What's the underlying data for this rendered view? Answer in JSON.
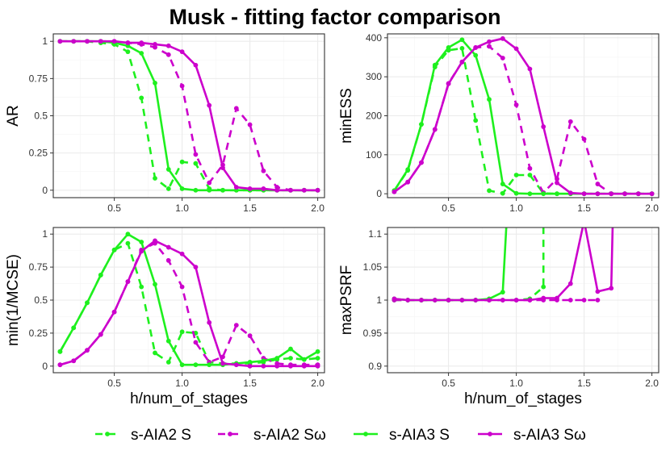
{
  "title": "Musk - fitting factor comparison",
  "colors": {
    "green": "#1ef01e",
    "magenta": "#cc00cc",
    "grid_major": "#ebebeb",
    "grid_minor": "#f5f5f5",
    "border": "#333333"
  },
  "legend": {
    "position": "bottom",
    "items": [
      {
        "label": "s-AIA2 S",
        "color": "#1ef01e",
        "dash": "dashed"
      },
      {
        "label": "s-AIA2 Sω",
        "color": "#cc00cc",
        "dash": "dashed"
      },
      {
        "label": "s-AIA3 S",
        "color": "#1ef01e",
        "dash": "solid"
      },
      {
        "label": "s-AIA3 Sω",
        "color": "#cc00cc",
        "dash": "solid"
      }
    ]
  },
  "chart_data": [
    {
      "type": "line",
      "ylabel": "AR",
      "xlabel": "",
      "xlim": [
        0.05,
        2.05
      ],
      "ylim": [
        -0.05,
        1.05
      ],
      "xticks": [
        {
          "v": 0.5,
          "l": "0.5"
        },
        {
          "v": 1.0,
          "l": "1.0"
        },
        {
          "v": 1.5,
          "l": "1.5"
        },
        {
          "v": 2.0,
          "l": "2.0"
        }
      ],
      "yticks": [
        {
          "v": 0,
          "l": "0"
        },
        {
          "v": 0.25,
          "l": "0.25"
        },
        {
          "v": 0.5,
          "l": "0.5"
        },
        {
          "v": 0.75,
          "l": "0.75"
        },
        {
          "v": 1,
          "l": "1"
        }
      ],
      "grid": true,
      "series": [
        {
          "name": "s-AIA2 S",
          "x": [
            0.1,
            0.2,
            0.3,
            0.4,
            0.5,
            0.6,
            0.7,
            0.8,
            0.9,
            1.0,
            1.1,
            1.2,
            1.3,
            1.4,
            1.5,
            1.6,
            1.7,
            1.8,
            1.9,
            2.0
          ],
          "y": [
            1,
            1,
            1,
            0.99,
            0.98,
            0.93,
            0.62,
            0.08,
            0.01,
            0.19,
            0.18,
            0.01,
            0,
            0,
            0,
            0,
            0,
            0,
            0,
            0
          ]
        },
        {
          "name": "s-AIA2 Sω",
          "x": [
            0.1,
            0.2,
            0.3,
            0.4,
            0.5,
            0.6,
            0.7,
            0.8,
            0.9,
            1.0,
            1.1,
            1.2,
            1.3,
            1.4,
            1.5,
            1.6,
            1.7,
            1.8,
            1.9,
            2.0
          ],
          "y": [
            1,
            1,
            1,
            1,
            1,
            0.99,
            0.98,
            0.96,
            0.91,
            0.7,
            0.24,
            0.05,
            0.17,
            0.55,
            0.44,
            0.13,
            0.02,
            0,
            0,
            0
          ]
        },
        {
          "name": "s-AIA3 S",
          "x": [
            0.1,
            0.2,
            0.3,
            0.4,
            0.5,
            0.6,
            0.7,
            0.8,
            0.9,
            1.0,
            1.1,
            1.2,
            1.3,
            1.4,
            1.5,
            1.6,
            1.7,
            1.8,
            1.9,
            2.0
          ],
          "y": [
            1,
            1,
            1,
            1,
            0.99,
            0.97,
            0.92,
            0.72,
            0.14,
            0.01,
            0,
            0,
            0,
            0,
            0,
            0,
            0,
            0,
            0,
            0
          ]
        },
        {
          "name": "s-AIA3 Sω",
          "x": [
            0.1,
            0.2,
            0.3,
            0.4,
            0.5,
            0.6,
            0.7,
            0.8,
            0.9,
            1.0,
            1.1,
            1.2,
            1.3,
            1.4,
            1.5,
            1.6,
            1.7,
            1.8,
            1.9,
            2.0
          ],
          "y": [
            1,
            1,
            1,
            1,
            1,
            0.99,
            0.99,
            0.98,
            0.97,
            0.93,
            0.84,
            0.57,
            0.15,
            0.02,
            0.01,
            0.01,
            0,
            0,
            0,
            0
          ]
        }
      ]
    },
    {
      "type": "line",
      "ylabel": "minESS",
      "xlabel": "",
      "xlim": [
        0.05,
        2.05
      ],
      "ylim": [
        -10,
        410
      ],
      "xticks": [
        {
          "v": 0.5,
          "l": "0.5"
        },
        {
          "v": 1.0,
          "l": "1.0"
        },
        {
          "v": 1.5,
          "l": "1.5"
        },
        {
          "v": 2.0,
          "l": "2.0"
        }
      ],
      "yticks": [
        {
          "v": 0,
          "l": "0"
        },
        {
          "v": 100,
          "l": "100"
        },
        {
          "v": 200,
          "l": "200"
        },
        {
          "v": 300,
          "l": "300"
        },
        {
          "v": 400,
          "l": "400"
        }
      ],
      "grid": true,
      "series": [
        {
          "name": "s-AIA2 S",
          "x": [
            0.1,
            0.2,
            0.3,
            0.4,
            0.5,
            0.6,
            0.7,
            0.8,
            0.9,
            1.0,
            1.1,
            1.2,
            1.3,
            1.4,
            1.5,
            1.6,
            1.7,
            1.8,
            1.9,
            2.0
          ],
          "y": [
            8,
            60,
            178,
            325,
            368,
            373,
            188,
            8,
            1,
            48,
            48,
            1,
            0,
            0,
            0,
            0,
            0,
            0,
            0,
            0
          ]
        },
        {
          "name": "s-AIA2 Sω",
          "x": [
            0.1,
            0.2,
            0.3,
            0.4,
            0.5,
            0.6,
            0.7,
            0.8,
            0.9,
            1.0,
            1.1,
            1.2,
            1.3,
            1.4,
            1.5,
            1.6,
            1.7,
            1.8,
            1.9,
            2.0
          ],
          "y": [
            5,
            30,
            80,
            165,
            283,
            338,
            375,
            378,
            348,
            228,
            65,
            3,
            38,
            185,
            140,
            25,
            0,
            0,
            0,
            0
          ]
        },
        {
          "name": "s-AIA3 S",
          "x": [
            0.1,
            0.2,
            0.3,
            0.4,
            0.5,
            0.6,
            0.7,
            0.8,
            0.9,
            1.0,
            1.1,
            1.2,
            1.3,
            1.4,
            1.5,
            1.6,
            1.7,
            1.8,
            1.9,
            2.0
          ],
          "y": [
            8,
            62,
            178,
            330,
            375,
            395,
            355,
            242,
            25,
            1,
            0,
            0,
            0,
            0,
            0,
            0,
            0,
            0,
            0,
            0
          ]
        },
        {
          "name": "s-AIA3 Sω",
          "x": [
            0.1,
            0.2,
            0.3,
            0.4,
            0.5,
            0.6,
            0.7,
            0.8,
            0.9,
            1.0,
            1.1,
            1.2,
            1.3,
            1.4,
            1.5,
            1.6,
            1.7,
            1.8,
            1.9,
            2.0
          ],
          "y": [
            5,
            30,
            80,
            165,
            282,
            338,
            375,
            390,
            398,
            372,
            320,
            172,
            28,
            2,
            0,
            0,
            0,
            0,
            0,
            0
          ]
        }
      ]
    },
    {
      "type": "line",
      "ylabel": "min(1/MCSE)",
      "xlabel": "h/num_of_stages",
      "xlim": [
        0.05,
        2.05
      ],
      "ylim": [
        -0.05,
        1.05
      ],
      "xticks": [
        {
          "v": 0.5,
          "l": "0.5"
        },
        {
          "v": 1.0,
          "l": "1.0"
        },
        {
          "v": 1.5,
          "l": "1.5"
        },
        {
          "v": 2.0,
          "l": "2.0"
        }
      ],
      "yticks": [
        {
          "v": 0,
          "l": "0"
        },
        {
          "v": 0.25,
          "l": "0.25"
        },
        {
          "v": 0.5,
          "l": "0.5"
        },
        {
          "v": 0.75,
          "l": "0.75"
        },
        {
          "v": 1,
          "l": "1"
        }
      ],
      "grid": true,
      "series": [
        {
          "name": "s-AIA2 S",
          "x": [
            0.1,
            0.2,
            0.3,
            0.4,
            0.5,
            0.6,
            0.7,
            0.8,
            0.9,
            1.0,
            1.1,
            1.2,
            1.3,
            1.4,
            1.5,
            1.6,
            1.7,
            1.8,
            1.9,
            2.0
          ],
          "y": [
            0.11,
            0.29,
            0.48,
            0.69,
            0.88,
            0.93,
            0.6,
            0.1,
            0.03,
            0.26,
            0.25,
            0.03,
            0.02,
            0.02,
            0.02,
            0.03,
            0.05,
            0.06,
            0.05,
            0.06
          ]
        },
        {
          "name": "s-AIA2 Sω",
          "x": [
            0.1,
            0.2,
            0.3,
            0.4,
            0.5,
            0.6,
            0.7,
            0.8,
            0.9,
            1.0,
            1.1,
            1.2,
            1.3,
            1.4,
            1.5,
            1.6,
            1.7,
            1.8,
            1.9,
            2.0
          ],
          "y": [
            0.01,
            0.04,
            0.12,
            0.24,
            0.41,
            0.64,
            0.88,
            0.93,
            0.8,
            0.6,
            0.18,
            0.03,
            0.07,
            0.31,
            0.23,
            0.06,
            0.02,
            0.01,
            0.01,
            0.01
          ]
        },
        {
          "name": "s-AIA3 S",
          "x": [
            0.1,
            0.2,
            0.3,
            0.4,
            0.5,
            0.6,
            0.7,
            0.8,
            0.9,
            1.0,
            1.1,
            1.2,
            1.3,
            1.4,
            1.5,
            1.6,
            1.7,
            1.8,
            1.9,
            2.0
          ],
          "y": [
            0.11,
            0.29,
            0.48,
            0.69,
            0.88,
            1.0,
            0.94,
            0.62,
            0.19,
            0.01,
            0.01,
            0.01,
            0.01,
            0.02,
            0.03,
            0.04,
            0.06,
            0.13,
            0.05,
            0.11
          ]
        },
        {
          "name": "s-AIA3 Sω",
          "x": [
            0.1,
            0.2,
            0.3,
            0.4,
            0.5,
            0.6,
            0.7,
            0.8,
            0.9,
            1.0,
            1.1,
            1.2,
            1.3,
            1.4,
            1.5,
            1.6,
            1.7,
            1.8,
            1.9,
            2.0
          ],
          "y": [
            0.01,
            0.04,
            0.12,
            0.24,
            0.41,
            0.64,
            0.87,
            0.95,
            0.9,
            0.85,
            0.75,
            0.33,
            0.02,
            0.01,
            0,
            0,
            0,
            0,
            0,
            0
          ]
        }
      ]
    },
    {
      "type": "line",
      "ylabel": "maxPSRF",
      "xlabel": "h/num_of_stages",
      "xlim": [
        0.05,
        2.05
      ],
      "ylim": [
        0.89,
        1.11
      ],
      "xticks": [
        {
          "v": 0.5,
          "l": "0.5"
        },
        {
          "v": 1.0,
          "l": "1.0"
        },
        {
          "v": 1.5,
          "l": "1.5"
        },
        {
          "v": 2.0,
          "l": "2.0"
        }
      ],
      "yticks": [
        {
          "v": 0.9,
          "l": "0.9"
        },
        {
          "v": 0.95,
          "l": "0.95"
        },
        {
          "v": 1,
          "l": "1"
        },
        {
          "v": 1.05,
          "l": "1.05"
        },
        {
          "v": 1.1,
          "l": "1.1"
        }
      ],
      "grid": true,
      "series": [
        {
          "name": "s-AIA2 S",
          "x": [
            0.1,
            0.2,
            0.3,
            0.4,
            0.5,
            0.6,
            0.7,
            0.8,
            0.9,
            1.0,
            1.1,
            1.2,
            1.2
          ],
          "y": [
            1,
            1,
            1,
            1,
            1,
            1,
            1,
            1,
            1,
            1,
            1.002,
            1.02,
            1.2
          ]
        },
        {
          "name": "s-AIA2 Sω",
          "x": [
            0.1,
            0.2,
            0.3,
            0.4,
            0.5,
            0.6,
            0.7,
            0.8,
            0.9,
            1.0,
            1.1,
            1.2,
            1.3,
            1.4,
            1.5,
            1.6
          ],
          "y": [
            1,
            1,
            1,
            1,
            1,
            1,
            1,
            1,
            1,
            1,
            1,
            1,
            1,
            1,
            1,
            1
          ]
        },
        {
          "name": "s-AIA3 S",
          "x": [
            0.1,
            0.2,
            0.3,
            0.4,
            0.5,
            0.6,
            0.7,
            0.8,
            0.9,
            0.95
          ],
          "y": [
            1.002,
            1,
            1,
            1,
            1,
            1,
            1,
            1.002,
            1.012,
            1.2
          ]
        },
        {
          "name": "s-AIA3 Sω",
          "x": [
            0.1,
            0.2,
            0.3,
            0.4,
            0.5,
            0.6,
            0.7,
            0.8,
            0.9,
            1.0,
            1.1,
            1.2,
            1.3,
            1.4,
            1.5,
            1.6,
            1.7,
            1.72
          ],
          "y": [
            1.002,
            1,
            1,
            1,
            1,
            1,
            1,
            1,
            1,
            1,
            1,
            1.003,
            1.003,
            1.025,
            1.12,
            1.013,
            1.018,
            1.2
          ]
        }
      ]
    }
  ]
}
